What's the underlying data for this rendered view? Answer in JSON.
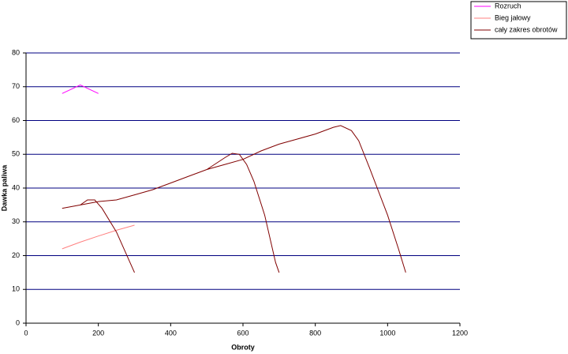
{
  "chart_data": {
    "type": "line",
    "x_label": "Obroty",
    "y_label": "Dawka paliwa",
    "xlim": [
      0,
      1200
    ],
    "xticks": [
      0,
      200,
      400,
      600,
      800,
      1000,
      1200
    ],
    "ylim": [
      0,
      80
    ],
    "yticks": [
      0,
      10,
      20,
      30,
      40,
      50,
      60,
      70,
      80
    ],
    "grid": true,
    "legend": "top-right",
    "series": [
      {
        "name": "Rozruch",
        "color": "#ff00ff",
        "x": [
          100,
          150,
          200
        ],
        "values": [
          68,
          70.5,
          68
        ]
      },
      {
        "name": "Bieg jałowy",
        "color": "#ff8080",
        "x": [
          100,
          150,
          200,
          250,
          300
        ],
        "values": [
          22,
          24,
          25.8,
          27.5,
          29
        ]
      },
      {
        "name": "cały zakres obrotów",
        "color": "#800000",
        "x": [
          100,
          150,
          200,
          250,
          300,
          350,
          400,
          450,
          500,
          550,
          600,
          650,
          700,
          750,
          800,
          850,
          870,
          900,
          920,
          950,
          1000,
          1030,
          1050,
          null,
          150,
          170,
          190,
          210,
          250,
          300,
          null,
          500,
          550,
          570,
          590,
          610,
          630,
          660,
          690,
          700
        ],
        "values": [
          34,
          35,
          36,
          36.5,
          38,
          39.5,
          41.5,
          43.5,
          45.5,
          47,
          48.5,
          51,
          53,
          54.5,
          56,
          58,
          58.5,
          57,
          54,
          46,
          32,
          22,
          15,
          null,
          35,
          36.5,
          36.5,
          34,
          27,
          15,
          null,
          45.5,
          49,
          50.3,
          50,
          47,
          42,
          32,
          18,
          15
        ]
      }
    ]
  }
}
